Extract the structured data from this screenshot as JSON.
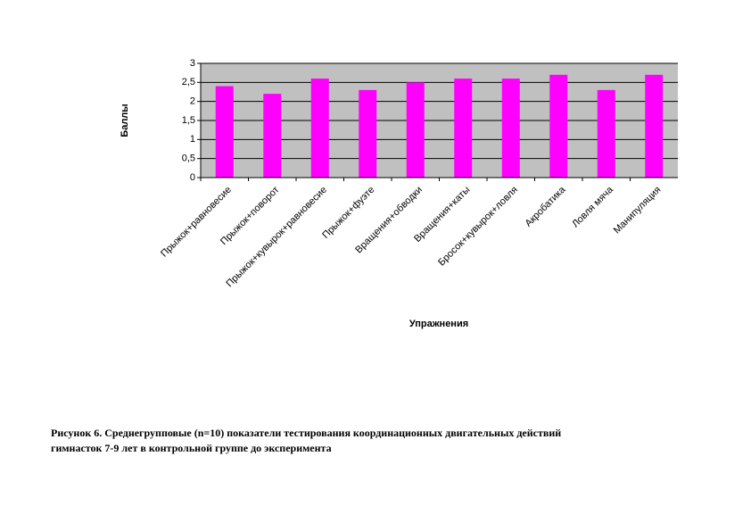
{
  "chart_data": {
    "type": "bar",
    "x_label": "Упражнения",
    "y_label": "Баллы",
    "categories": [
      "Прыжок+равновесие",
      "Прыжок+поворот",
      "Прыжок+кувырок+равновесие",
      "Прыжок+фуэте",
      "Вращения+обводки",
      "Вращения+каты",
      "Бросок+кувырок+ловля",
      "Акробатика",
      "Ловля мяча",
      "Манипуляция"
    ],
    "values": [
      2.4,
      2.2,
      2.6,
      2.3,
      2.5,
      2.6,
      2.6,
      2.7,
      2.3,
      2.7
    ],
    "color": "#ff00ff",
    "ylim": [
      0,
      3
    ],
    "yticks": [
      0,
      {
        "value": 0.5,
        "label": "0,5"
      },
      1,
      {
        "value": 1.5,
        "label": "1,5"
      },
      2,
      {
        "value": 2.5,
        "label": "2,5"
      },
      3
    ],
    "grid": true
  },
  "caption": [
    "Рисунок 6. Среднегрупповые (n=10) показатели тестирования координационных двигательных действий",
    "гимнасток 7-9 лет в контрольной группе до эксперимента"
  ]
}
